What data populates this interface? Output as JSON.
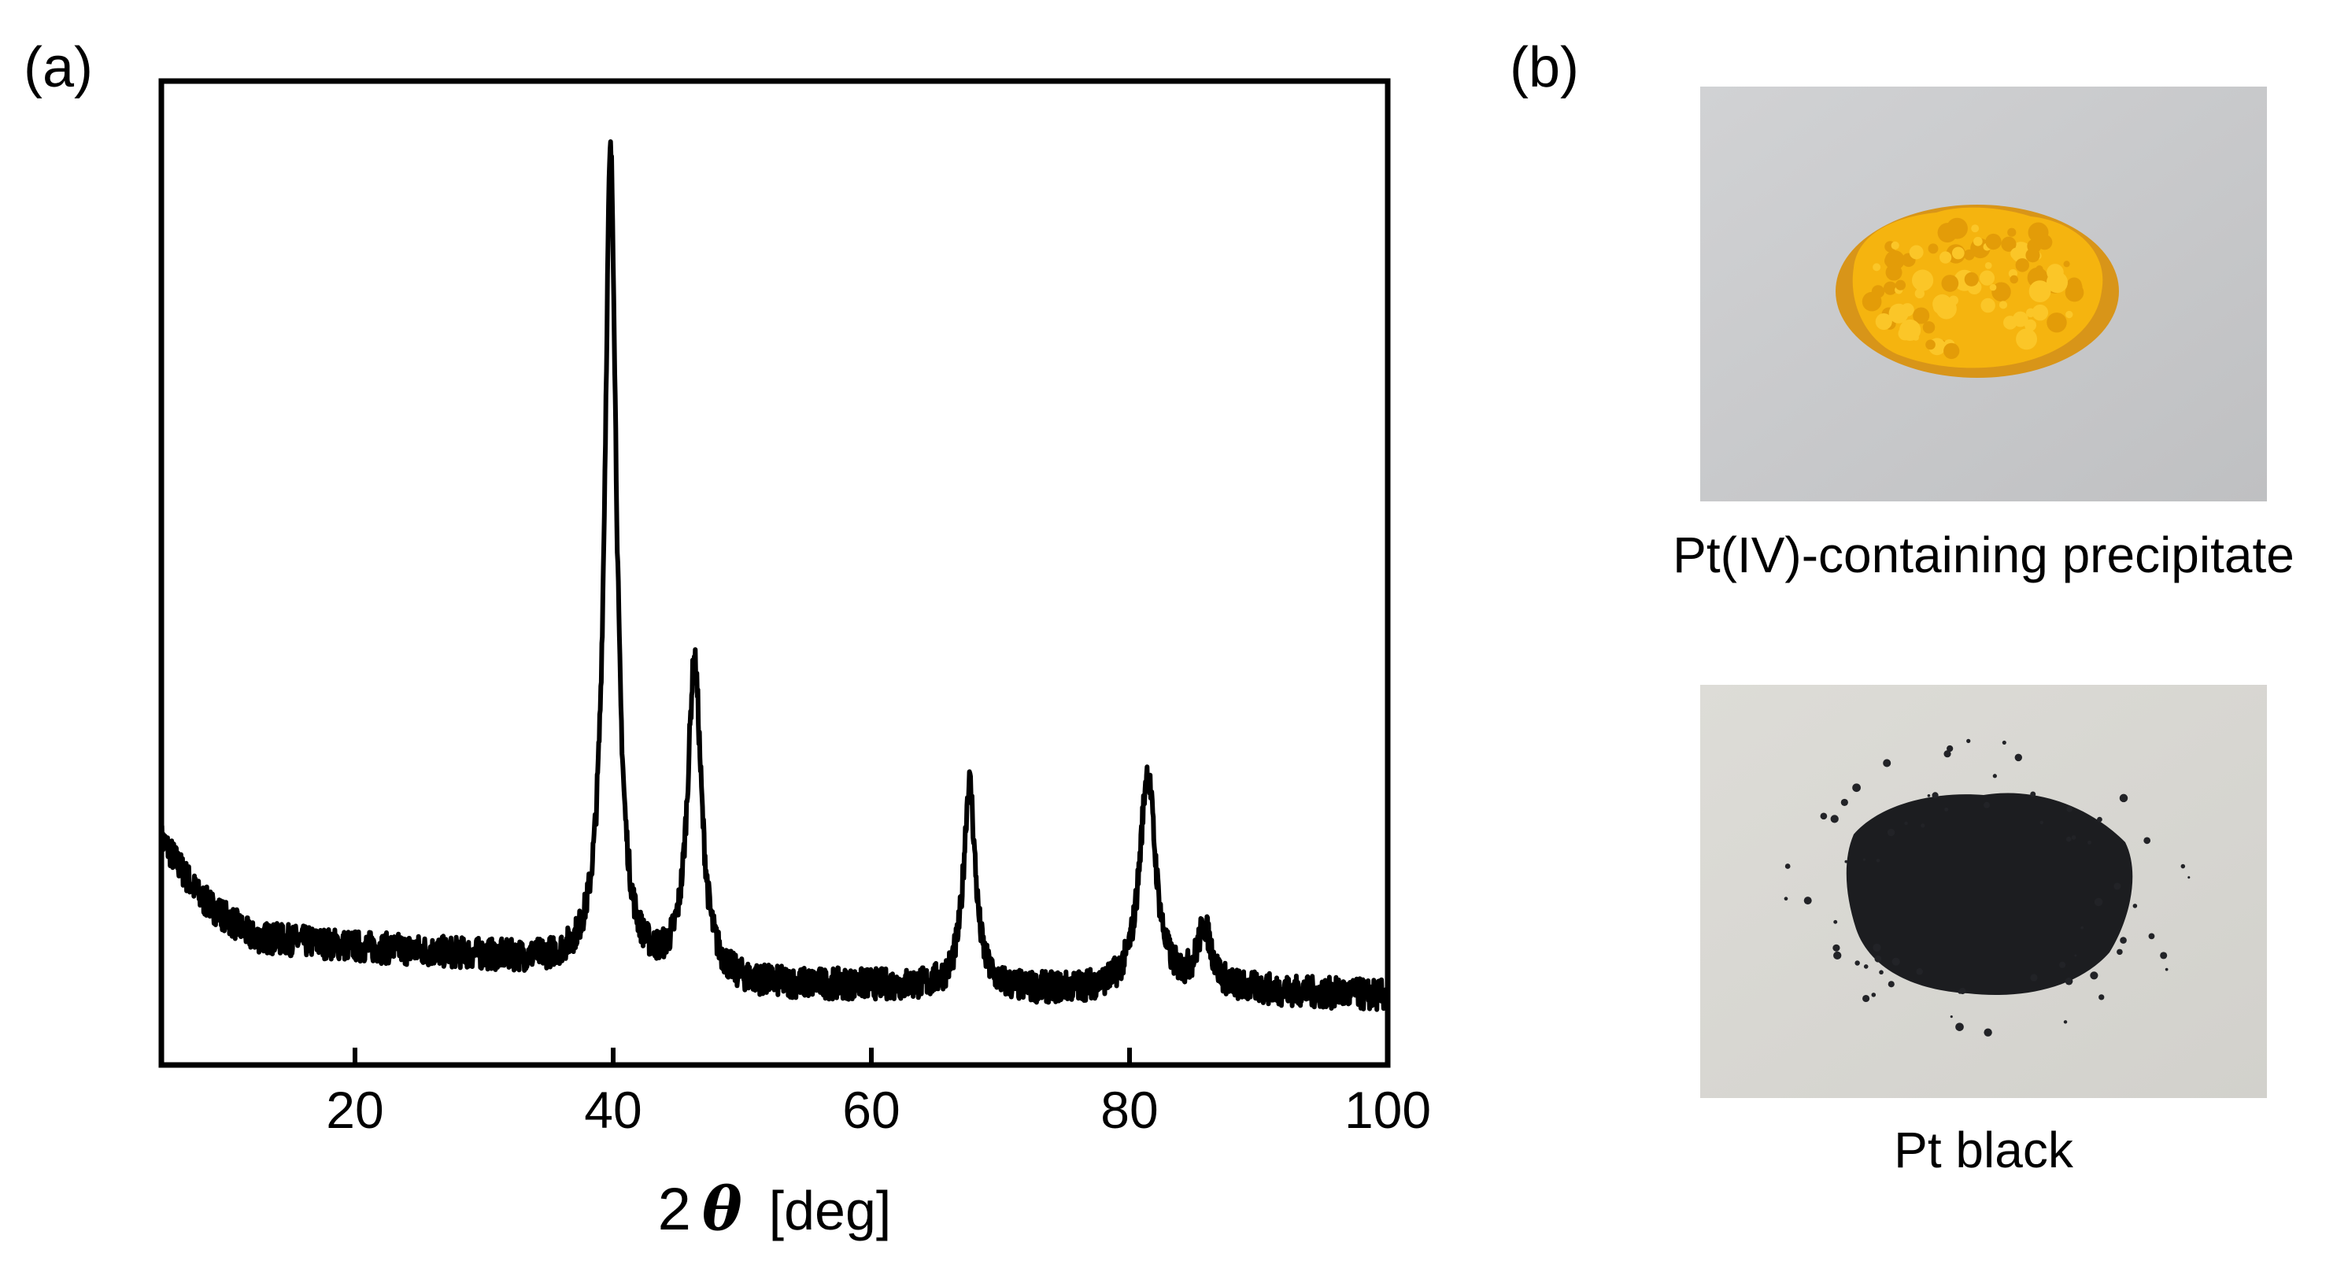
{
  "panel_a_label": "(a)",
  "panel_b_label": "(b)",
  "chart_data": {
    "type": "line",
    "title": "",
    "xlabel_prefix": "2",
    "xlabel_symbol": "θ",
    "xlabel_unit": "[deg]",
    "ylabel": "",
    "xlim": [
      5,
      100
    ],
    "ylim": [
      0,
      100
    ],
    "xticks": [
      20,
      40,
      60,
      80,
      100
    ],
    "xtick_labels": [
      "20",
      "40",
      "60",
      "80",
      "100"
    ],
    "yticks_shown": false,
    "grid": false,
    "legend": null,
    "series": [
      {
        "name": "XRD pattern",
        "color": "#000000",
        "baseline": [
          [
            5,
            23
          ],
          [
            8,
            17
          ],
          [
            12,
            13
          ],
          [
            20,
            12
          ],
          [
            30,
            11
          ],
          [
            37,
            10
          ],
          [
            42,
            9
          ],
          [
            50,
            8
          ],
          [
            60,
            8
          ],
          [
            70,
            7.5
          ],
          [
            80,
            7.5
          ],
          [
            90,
            7.5
          ],
          [
            100,
            7
          ]
        ],
        "peaks": [
          {
            "x": 39.8,
            "height": 83,
            "width": 0.55
          },
          {
            "x": 46.3,
            "height": 32,
            "width": 0.65
          },
          {
            "x": 67.6,
            "height": 21,
            "width": 0.55
          },
          {
            "x": 81.4,
            "height": 22,
            "width": 0.75
          },
          {
            "x": 85.8,
            "height": 6,
            "width": 0.7
          }
        ]
      }
    ]
  },
  "photos": {
    "precipitate": {
      "caption": "Pt(IV)-containing precipitate",
      "background_color": "#c9cacc",
      "sample_color": "#f5b40f",
      "sample_shadow_color": "#d98f06"
    },
    "pt_black": {
      "caption": "Pt black",
      "background_color": "#d9d8d3",
      "sample_color": "#1c1d20",
      "sample_shadow_color": "#2c2e33"
    }
  }
}
